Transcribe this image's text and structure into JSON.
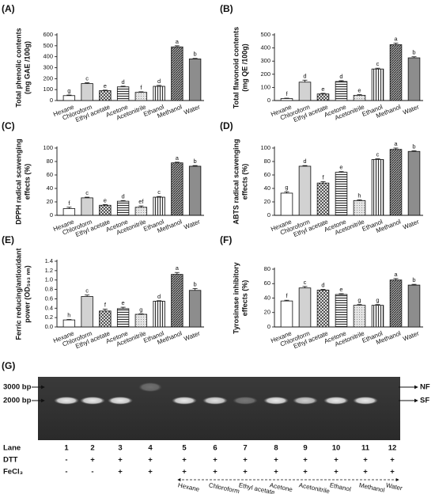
{
  "chart_data": [
    {
      "type": "bar",
      "panel": "(A)",
      "ylabel": [
        "Total phenolic contents",
        "(mg GAE /100g)"
      ],
      "categories": [
        "Hexane",
        "Chloroform",
        "Ethyl acetate",
        "Acetone",
        "Acetonitrile",
        "Ethanol",
        "Methanol",
        "Water"
      ],
      "values": [
        45,
        155,
        90,
        125,
        75,
        130,
        490,
        380
      ],
      "errors": [
        5,
        8,
        5,
        6,
        5,
        8,
        10,
        5
      ],
      "letters": [
        "g",
        "c",
        "e",
        "d",
        "f",
        "d",
        "a",
        "b"
      ],
      "ylim": [
        0,
        600
      ],
      "yticks": [
        0,
        100,
        200,
        300,
        400,
        500,
        600
      ]
    },
    {
      "type": "bar",
      "panel": "(B)",
      "ylabel": [
        "Total flavonoid contents",
        "(mg QE /100g)"
      ],
      "categories": [
        "Hexane",
        "Chloroform",
        "Ethyl acetate",
        "Acetone",
        "Acetonitrile",
        "Ethanol",
        "Methanol",
        "Water"
      ],
      "values": [
        15,
        140,
        50,
        145,
        40,
        240,
        425,
        325
      ],
      "errors": [
        3,
        15,
        5,
        6,
        5,
        6,
        12,
        8
      ],
      "letters": [
        "f",
        "d",
        "e",
        "d",
        "e",
        "c",
        "a",
        "b"
      ],
      "ylim": [
        0,
        500
      ],
      "yticks": [
        0,
        100,
        200,
        300,
        400,
        500
      ]
    },
    {
      "type": "bar",
      "panel": "(C)",
      "ylabel": [
        "DPPH radical scavenging",
        "effects (%)"
      ],
      "categories": [
        "Hexane",
        "Chloroform",
        "Ethyl acetate",
        "Acetone",
        "Acetonitrile",
        "Ethanol",
        "Methanol",
        "Water"
      ],
      "values": [
        10,
        26,
        15,
        21,
        12,
        27,
        78,
        73
      ],
      "errors": [
        2,
        1,
        1,
        1,
        2,
        1,
        1,
        1
      ],
      "letters": [
        "f",
        "c",
        "e",
        "d",
        "ef",
        "c",
        "a",
        "b"
      ],
      "ylim": [
        0,
        100
      ],
      "yticks": [
        0,
        20,
        40,
        60,
        80,
        100
      ]
    },
    {
      "type": "bar",
      "panel": "(D)",
      "ylabel": [
        "ABTS radical scavenging",
        "effects (%)"
      ],
      "categories": [
        "Hexane",
        "Chloroform",
        "Ethyl acetate",
        "Acetone",
        "Acetonitrile",
        "Ethanol",
        "Methanol",
        "Water"
      ],
      "values": [
        33,
        73,
        48,
        64,
        22,
        83,
        98,
        95
      ],
      "errors": [
        2,
        1,
        2,
        1,
        1,
        1,
        2,
        1
      ],
      "letters": [
        "g",
        "d",
        "f",
        "e",
        "h",
        "c",
        "a",
        "b"
      ],
      "ylim": [
        0,
        100
      ],
      "yticks": [
        0,
        20,
        40,
        60,
        80,
        100
      ]
    },
    {
      "type": "bar",
      "panel": "(E)",
      "ylabel": [
        "Ferric reducing/antioxidant",
        "power (OD₅₉₃ ₙₘ)"
      ],
      "categories": [
        "Hexane",
        "Chloroform",
        "Ethyl acetate",
        "Acetone",
        "Acetonitrile",
        "Ethanol",
        "Methanol",
        "Water"
      ],
      "values": [
        0.15,
        0.65,
        0.34,
        0.39,
        0.27,
        0.55,
        1.12,
        0.78
      ],
      "errors": [
        0.01,
        0.03,
        0.04,
        0.03,
        0.01,
        0.01,
        0.04,
        0.04
      ],
      "letters": [
        "h",
        "c",
        "f",
        "e",
        "g",
        "d",
        "a",
        "b"
      ],
      "ylim": [
        0,
        1.4
      ],
      "yticks": [
        {
          "value": 0,
          "label": "0.0"
        },
        0.2,
        0.4,
        0.6,
        0.8,
        {
          "value": 1,
          "label": "1.0"
        },
        1.2,
        1.4
      ]
    },
    {
      "type": "bar",
      "panel": "(F)",
      "ylabel": [
        "Tyrosinase inhibitory",
        "effects (%)"
      ],
      "categories": [
        "Hexane",
        "Chloroform",
        "Ethyl acetate",
        "Acetone",
        "Acetonitrile",
        "Ethanol",
        "Methanol",
        "Water"
      ],
      "values": [
        36,
        54,
        51,
        45,
        30,
        30,
        65,
        58
      ],
      "errors": [
        1,
        2,
        1,
        1,
        1,
        1,
        2,
        1
      ],
      "letters": [
        "f",
        "c",
        "d",
        "e",
        "g",
        "g",
        "a",
        "b"
      ],
      "ylim": [
        0,
        80
      ],
      "yticks": [
        0,
        20,
        40,
        60,
        80
      ]
    }
  ],
  "gel": {
    "panel": "(G)",
    "markers": [
      "3000 bp",
      "2000 bp"
    ],
    "forms": [
      "NF",
      "SF"
    ],
    "row_labels": [
      "Lane",
      "DTT",
      "FeCl₃"
    ],
    "lanes": [
      1,
      2,
      3,
      4,
      5,
      6,
      7,
      8,
      9,
      10,
      11,
      12
    ],
    "dtt": [
      "-",
      "+",
      "+",
      "+",
      "+",
      "+",
      "+",
      "+",
      "+",
      "+",
      "+",
      "+"
    ],
    "fecl3": [
      "-",
      "-",
      "+",
      "+",
      "+",
      "+",
      "+",
      "+",
      "+",
      "+",
      "+",
      "+"
    ],
    "solvents": [
      "Hexane",
      "Chloroform",
      "Ethyl acetate",
      "Acetone",
      "Acetonitrile",
      "Ethanol",
      "Methanol",
      "Water"
    ]
  }
}
